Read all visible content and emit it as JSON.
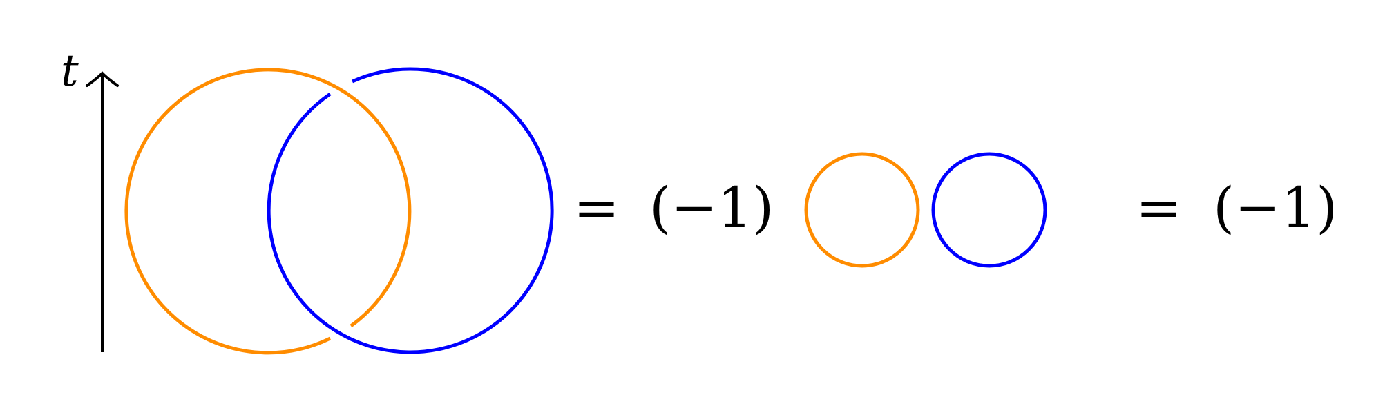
{
  "axis": {
    "label": "t"
  },
  "equations": {
    "first": {
      "equals": "=",
      "coefficient": "(−1)"
    },
    "second": {
      "equals": "=",
      "coefficient": "(−1)"
    }
  },
  "colors": {
    "loop_a": "#ff8c00",
    "loop_b": "#0000ff",
    "axis": "#000000"
  }
}
